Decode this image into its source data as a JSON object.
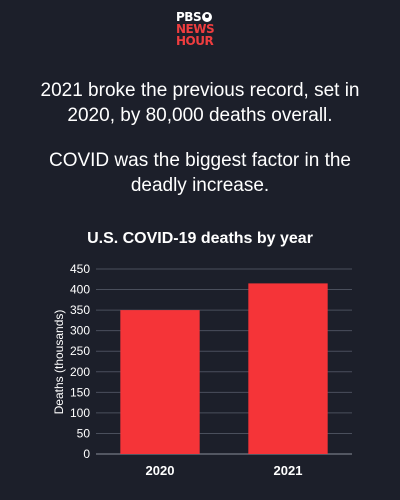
{
  "logo": {
    "line1": "PBS",
    "line2": "NEWS",
    "line3": "HOUR"
  },
  "statements": [
    "2021 broke the previous record, set in 2020, by 80,000 deaths overall.",
    "COVID was the biggest factor in the deadly increase."
  ],
  "chart_data": {
    "type": "bar",
    "title": "U.S. COVID-19 deaths by year",
    "ylabel": "Deaths (thousands)",
    "xlabel": "",
    "categories": [
      "2020",
      "2021"
    ],
    "values": [
      350,
      415
    ],
    "ylim": [
      0,
      450
    ],
    "yticks": [
      0,
      50,
      100,
      150,
      200,
      250,
      300,
      350,
      400,
      450
    ],
    "grid": true,
    "bar_color": "#f53438",
    "grid_color": "#4a4f5c"
  }
}
